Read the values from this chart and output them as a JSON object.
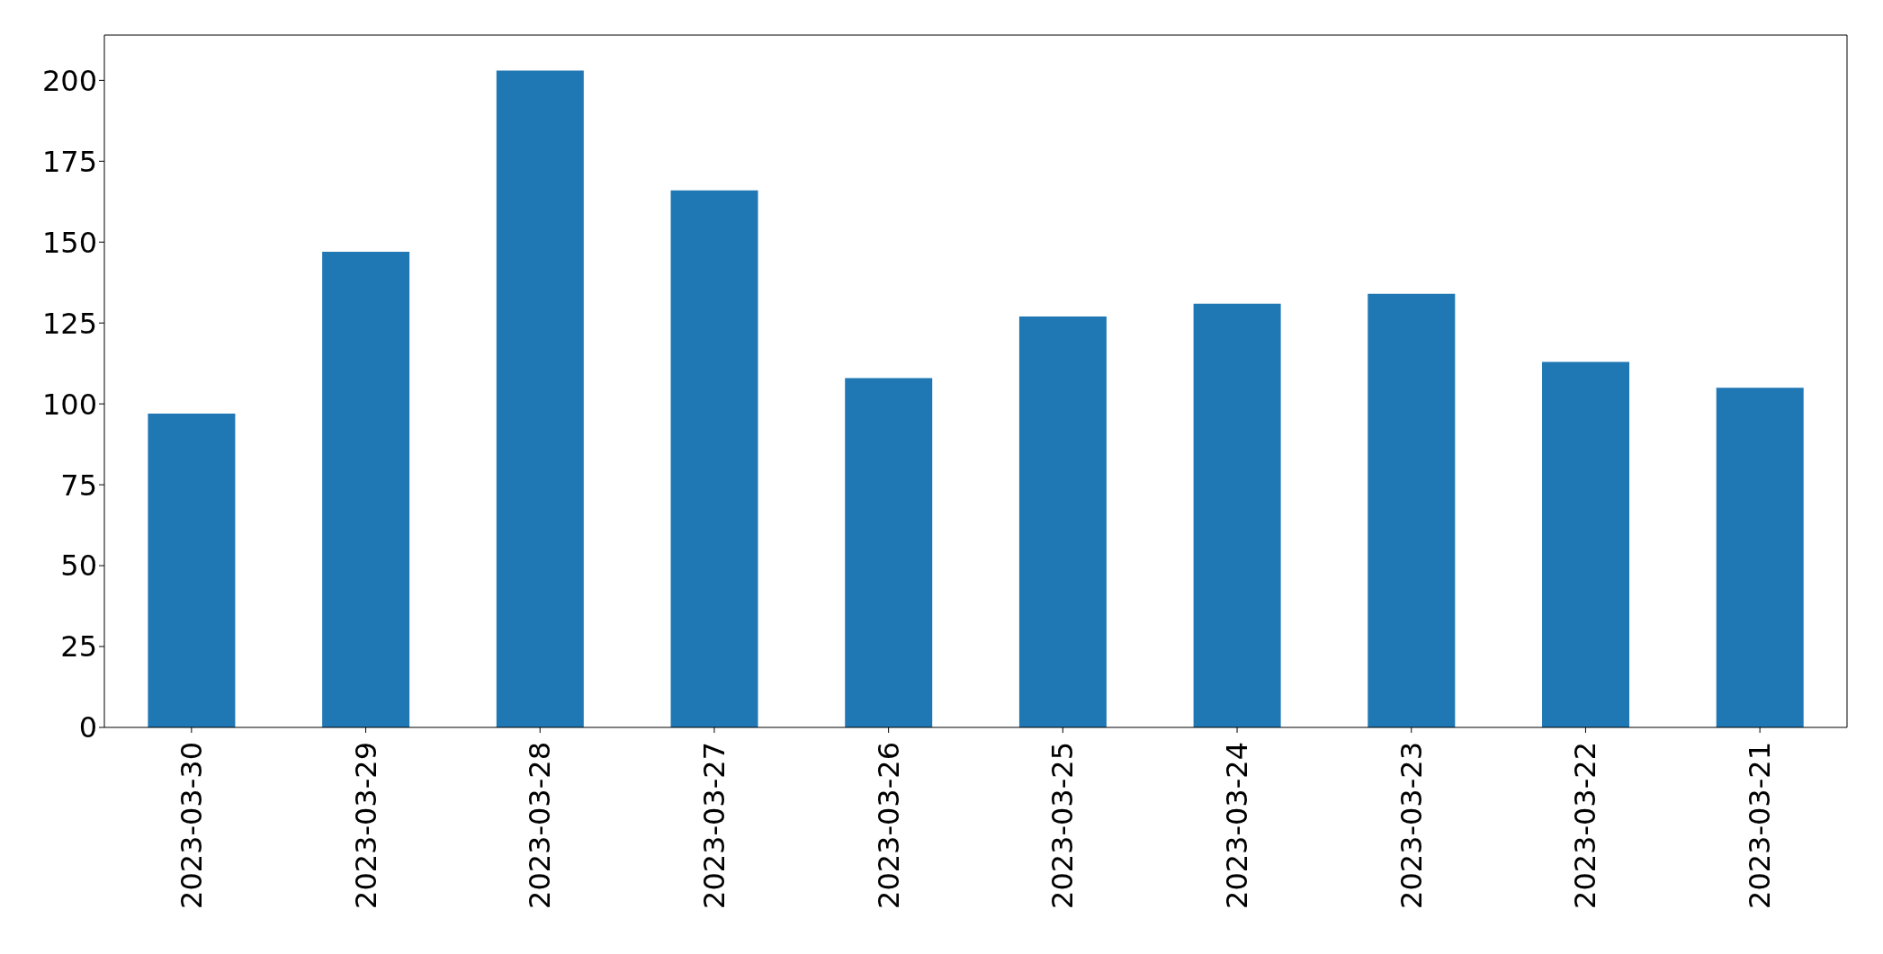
{
  "chart_data": {
    "type": "bar",
    "categories": [
      "2023-03-30",
      "2023-03-29",
      "2023-03-28",
      "2023-03-27",
      "2023-03-26",
      "2023-03-25",
      "2023-03-24",
      "2023-03-23",
      "2023-03-22",
      "2023-03-21"
    ],
    "values": [
      97,
      147,
      203,
      166,
      108,
      127,
      131,
      134,
      113,
      105
    ],
    "color": "#1f77b4",
    "ylim": [
      0,
      214
    ],
    "yticks": [
      0,
      25,
      50,
      75,
      100,
      125,
      150,
      175,
      200
    ],
    "grid": false
  }
}
